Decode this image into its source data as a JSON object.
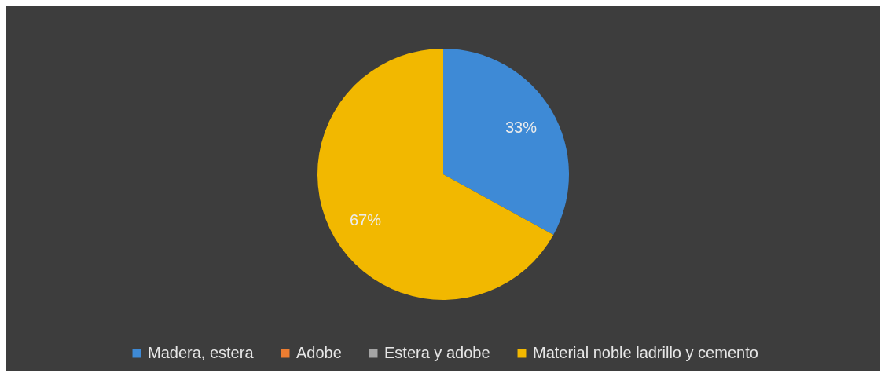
{
  "chart_data": {
    "type": "pie",
    "categories": [
      "Madera, estera",
      "Adobe",
      "Estera y adobe",
      "Material noble ladrillo y cemento"
    ],
    "values": [
      33,
      0,
      0,
      67
    ],
    "colors": [
      "#3e8ad6",
      "#ed7d31",
      "#a5a5a5",
      "#f2b800"
    ],
    "value_labels": [
      "33%",
      null,
      null,
      "67%"
    ],
    "legend": "bottom"
  }
}
